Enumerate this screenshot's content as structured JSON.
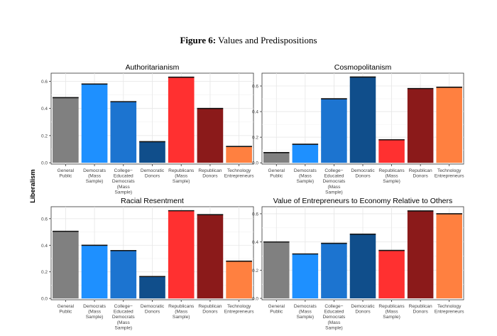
{
  "figure": {
    "label": "Figure 6:",
    "title": "Values and Predispositions"
  },
  "shared_ylabel": "Liberalism",
  "colors": {
    "General Public": "#808080",
    "Democrats (Mass Sample)": "#1e90ff",
    "College-Educated Democrats (Mass Sample)": "#1c74d0",
    "Democratic Donors": "#104e8b",
    "Republicans (Mass Sample)": "#ff3030",
    "Republican Donors": "#8b1a1a",
    "Technology Entrepreneurs": "#ff8040"
  },
  "chart_data": [
    {
      "type": "bar",
      "title": "Authoritarianism",
      "categories": [
        "General Public",
        "Democrats (Mass Sample)",
        "College-Educated Democrats (Mass Sample)",
        "Democratic Donors",
        "Republicans (Mass Sample)",
        "Republican Donors",
        "Technology Entrepreneurs"
      ],
      "category_labels": [
        [
          "General",
          "Public"
        ],
        [
          "Democrats",
          "(Mass",
          "Sample)"
        ],
        [
          "College−",
          "Educated",
          "Democrats",
          "(Mass",
          "Sample)"
        ],
        [
          "Democratic",
          "Donors"
        ],
        [
          "Republicans",
          "(Mass",
          "Sample)"
        ],
        [
          "Republican",
          "Donors"
        ],
        [
          "Technology",
          "Entrepreneurs"
        ]
      ],
      "values": [
        0.48,
        0.58,
        0.45,
        0.155,
        0.63,
        0.4,
        0.12
      ],
      "ylim": [
        -0.01,
        0.66
      ],
      "yticks": [
        0.0,
        0.2,
        0.4,
        0.6
      ],
      "ytick_labels": [
        "0.0",
        "0.2",
        "0.4",
        "0.6"
      ],
      "grid": true
    },
    {
      "type": "bar",
      "title": "Cosmopolitanism",
      "categories": [
        "General Public",
        "Democrats (Mass Sample)",
        "College-Educated Democrats (Mass Sample)",
        "Democratic Donors",
        "Republicans (Mass Sample)",
        "Republican Donors",
        "Technology Entrepreneurs"
      ],
      "category_labels": [
        [
          "General",
          "Public"
        ],
        [
          "Democrats",
          "(Mass",
          "Sample)"
        ],
        [
          "College−",
          "Educated",
          "Democrats",
          "(Mass",
          "Sample)"
        ],
        [
          "Democratic",
          "Donors"
        ],
        [
          "Republicans",
          "(Mass",
          "Sample)"
        ],
        [
          "Republican",
          "Donors"
        ],
        [
          "Technology",
          "Entrepreneurs"
        ]
      ],
      "values": [
        0.08,
        0.145,
        0.5,
        0.67,
        0.18,
        0.58,
        0.59
      ],
      "ylim": [
        -0.01,
        0.7
      ],
      "yticks": [
        0.0,
        0.2,
        0.4,
        0.6
      ],
      "ytick_labels": [
        "0.0",
        "0.2",
        "0.4",
        "0.6"
      ],
      "grid": true
    },
    {
      "type": "bar",
      "title": "Racial Resentment",
      "categories": [
        "General Public",
        "Democrats (Mass Sample)",
        "College-Educated Democrats (Mass Sample)",
        "Democratic Donors",
        "Republicans (Mass Sample)",
        "Republican Donors",
        "Technology Entrepreneurs"
      ],
      "category_labels": [
        [
          "General",
          "Public"
        ],
        [
          "Democrats",
          "(Mass",
          "Sample)"
        ],
        [
          "College−",
          "Educated",
          "Democrats",
          "(Mass",
          "Sample)"
        ],
        [
          "Democratic",
          "Donors"
        ],
        [
          "Republicans",
          "(Mass",
          "Sample)"
        ],
        [
          "Republican",
          "Donors"
        ],
        [
          "Technology",
          "Entrepreneurs"
        ]
      ],
      "values": [
        0.505,
        0.4,
        0.36,
        0.165,
        0.66,
        0.63,
        0.28
      ],
      "ylim": [
        -0.01,
        0.69
      ],
      "yticks": [
        0.0,
        0.2,
        0.4,
        0.6
      ],
      "ytick_labels": [
        "0.0",
        "0.2",
        "0.4",
        "0.6"
      ],
      "grid": true
    },
    {
      "type": "bar",
      "title": "Value of Entrepreneurs to Economy Relative to Others",
      "categories": [
        "General Public",
        "Democrats (Mass Sample)",
        "College-Educated Democrats (Mass Sample)",
        "Democratic Donors",
        "Republicans (Mass Sample)",
        "Republican Donors",
        "Technology Entrepreneurs"
      ],
      "category_labels": [
        [
          "General",
          "Public"
        ],
        [
          "Democrats",
          "(Mass",
          "Sample)"
        ],
        [
          "College−",
          "Educated",
          "Democrats",
          "(Mass",
          "Sample)"
        ],
        [
          "Democratic",
          "Donors"
        ],
        [
          "Republicans",
          "(Mass",
          "Sample)"
        ],
        [
          "Republican",
          "Donors"
        ],
        [
          "Technology",
          "Entrepreneurs"
        ]
      ],
      "values": [
        0.4,
        0.315,
        0.39,
        0.455,
        0.34,
        0.62,
        0.6
      ],
      "ylim": [
        -0.01,
        0.65
      ],
      "yticks": [
        0.0,
        0.2,
        0.4,
        0.6
      ],
      "ytick_labels": [
        "0.0",
        "0.2",
        "0.4",
        "0.6"
      ],
      "grid": true
    }
  ]
}
